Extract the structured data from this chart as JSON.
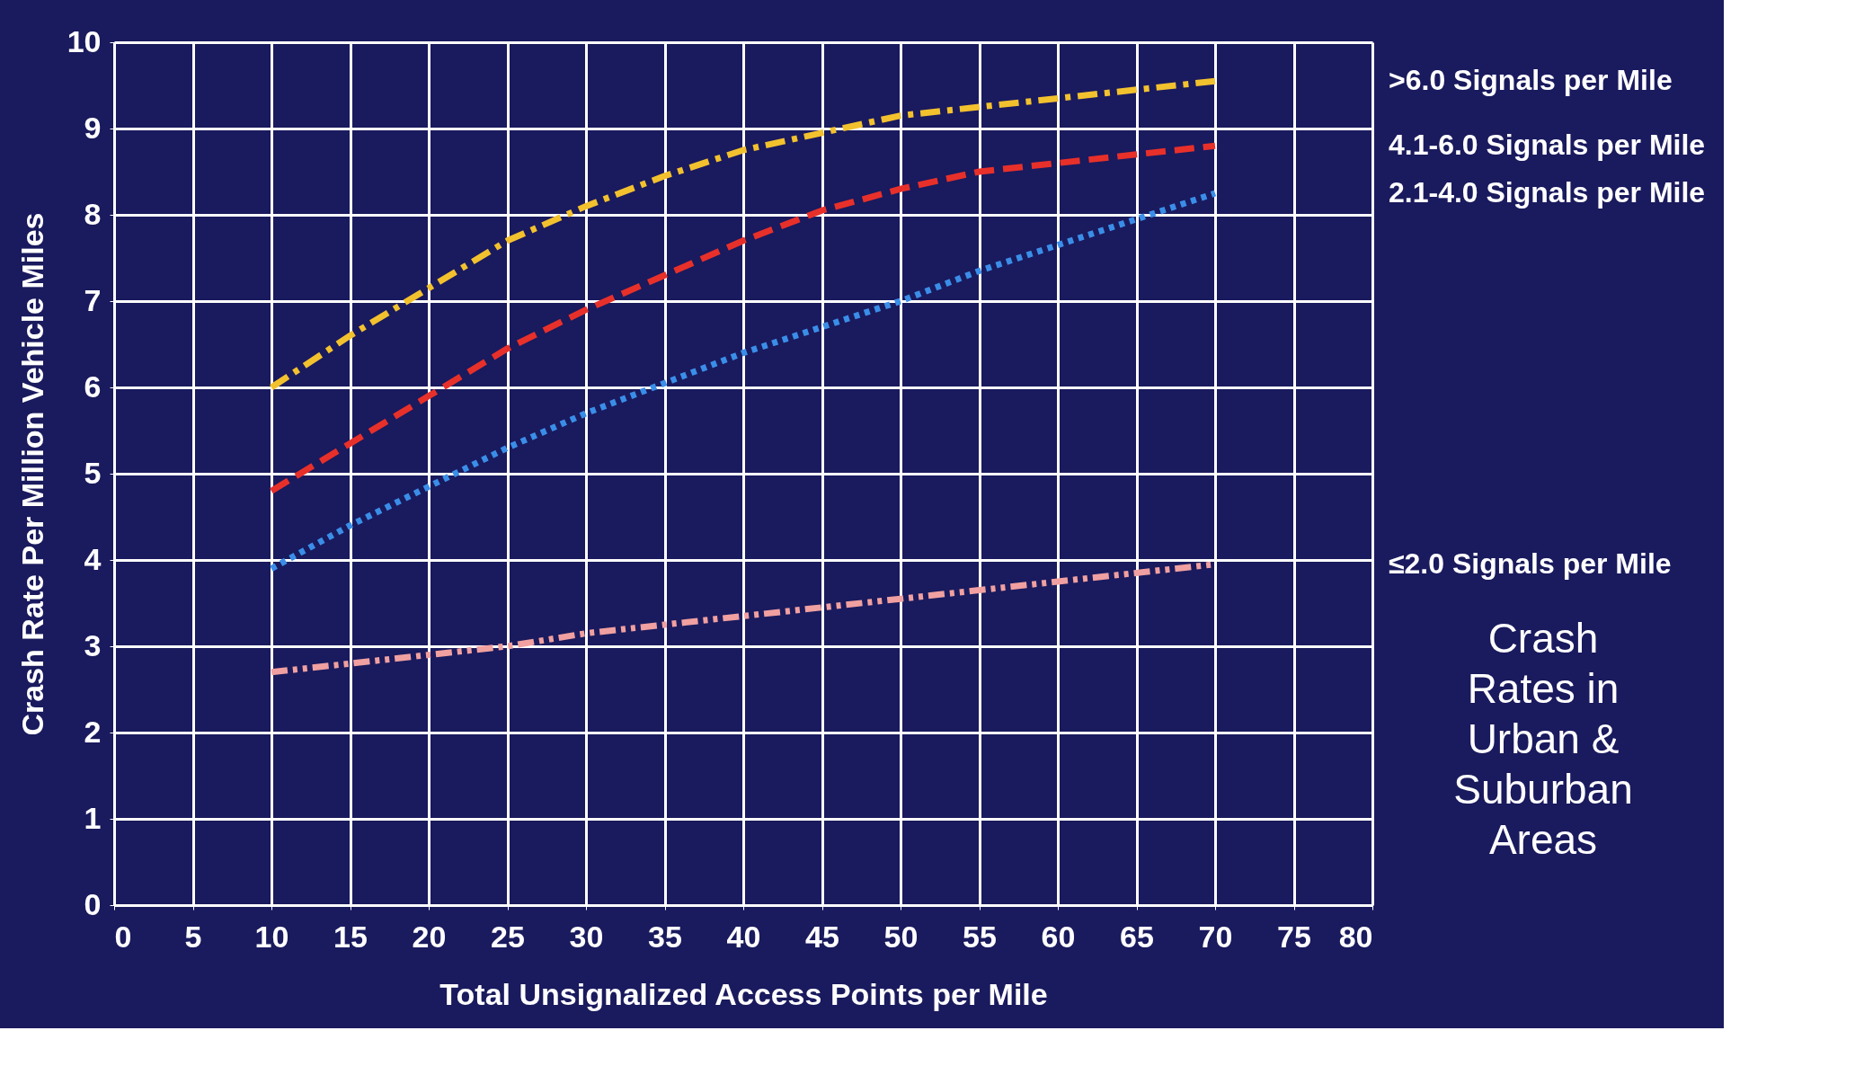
{
  "chart_data": {
    "type": "line",
    "xlabel": "Total Unsignalized Access Points per Mile",
    "ylabel": "Crash Rate Per Million Vehicle Miles",
    "x": [
      10,
      15,
      20,
      25,
      30,
      35,
      40,
      45,
      50,
      55,
      60,
      65,
      70
    ],
    "series": [
      {
        "name": ">6.0 Signals per Mile",
        "color": "#f2c12e",
        "line_style": "dashdot",
        "values": [
          6.0,
          6.6,
          7.15,
          7.7,
          8.1,
          8.45,
          8.75,
          8.95,
          9.15,
          9.25,
          9.35,
          9.45,
          9.55
        ]
      },
      {
        "name": "4.1-6.0 Signals per Mile",
        "color": "#e8302a",
        "line_style": "dashed",
        "values": [
          4.8,
          5.35,
          5.9,
          6.45,
          6.9,
          7.3,
          7.7,
          8.05,
          8.3,
          8.5,
          8.6,
          8.7,
          8.8
        ]
      },
      {
        "name": "2.1-4.0 Signals per Mile",
        "color": "#3a8ee8",
        "line_style": "dotted",
        "values": [
          3.9,
          4.4,
          4.85,
          5.3,
          5.7,
          6.05,
          6.4,
          6.7,
          7.0,
          7.35,
          7.65,
          7.95,
          8.25
        ]
      },
      {
        "name": "≤2.0 Signals per Mile",
        "color": "#f0a0a0",
        "line_style": "dashdotdot",
        "values": [
          2.7,
          2.8,
          2.9,
          3.0,
          3.15,
          3.25,
          3.35,
          3.45,
          3.55,
          3.65,
          3.75,
          3.85,
          3.95
        ]
      }
    ],
    "xlim": [
      0,
      80
    ],
    "xticks": [
      0,
      5,
      10,
      15,
      20,
      25,
      30,
      35,
      40,
      45,
      50,
      55,
      60,
      65,
      70,
      75,
      80
    ],
    "ylim": [
      0,
      10
    ],
    "yticks": [
      0,
      1,
      2,
      3,
      4,
      5,
      6,
      7,
      8,
      9,
      10
    ],
    "grid": true,
    "marker": "none",
    "annotations": [
      "Crash Rates in Urban & Suburban Areas"
    ]
  }
}
